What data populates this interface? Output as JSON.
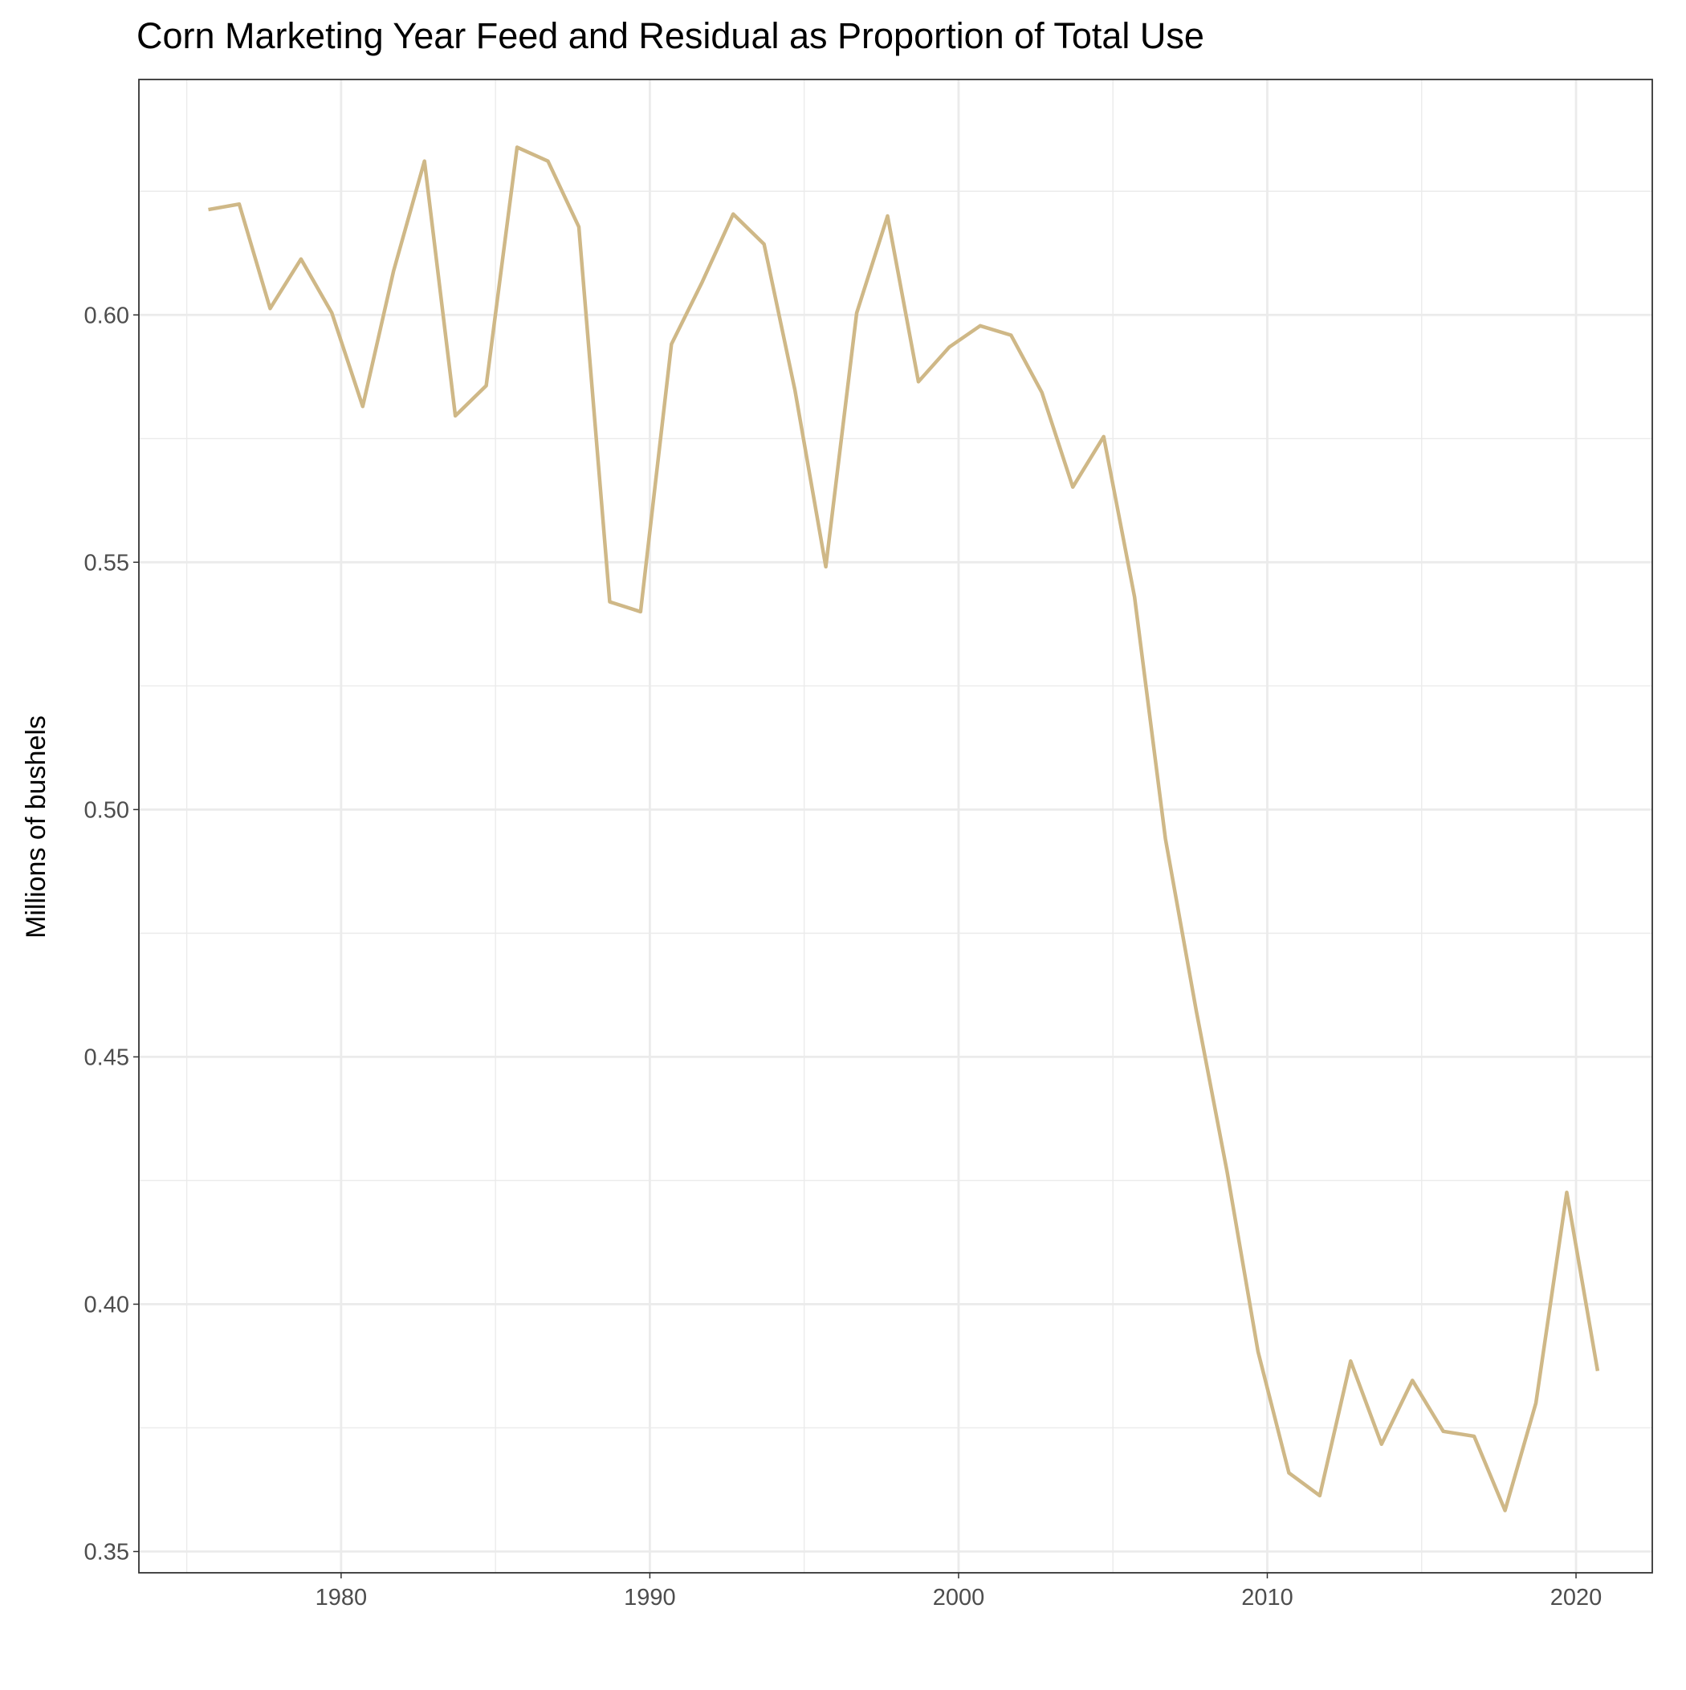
{
  "chart_data": {
    "type": "line",
    "title": "Corn Marketing Year Feed and Residual as Proportion of Total Use",
    "y_label": "Millions of bushels",
    "x": [
      1975.7,
      1976.7,
      1977.7,
      1978.7,
      1979.7,
      1980.7,
      1981.7,
      1982.7,
      1983.7,
      1984.7,
      1985.7,
      1986.7,
      1987.7,
      1988.7,
      1989.7,
      1990.7,
      1991.7,
      1992.7,
      1993.7,
      1994.7,
      1995.7,
      1996.7,
      1997.7,
      1998.7,
      1999.7,
      2000.7,
      2001.7,
      2002.7,
      2003.7,
      2004.7,
      2005.7,
      2006.7,
      2007.7,
      2008.7,
      2009.7,
      2010.7,
      2011.7,
      2012.7,
      2013.7,
      2014.7,
      2015.7,
      2016.7,
      2017.7,
      2018.7,
      2019.7,
      2020.7
    ],
    "series": [
      {
        "color": "#cfb887",
        "values": [
          0.6213,
          0.6224,
          0.6013,
          0.6113,
          0.6004,
          0.5815,
          0.6089,
          0.6311,
          0.5796,
          0.5857,
          0.6339,
          0.6311,
          0.6178,
          0.542,
          0.54,
          0.5941,
          0.6067,
          0.6204,
          0.6143,
          0.5848,
          0.5491,
          0.6004,
          0.62,
          0.5865,
          0.5935,
          0.5978,
          0.5959,
          0.5843,
          0.5652,
          0.5754,
          0.543,
          0.4941,
          0.4593,
          0.4267,
          0.3904,
          0.3659,
          0.3613,
          0.3885,
          0.3717,
          0.3846,
          0.3743,
          0.3733,
          0.3583,
          0.38,
          0.4226,
          0.3865
        ]
      }
    ],
    "xlim": [
      1973.45,
      2022.47
    ],
    "xticks": [
      1980,
      1990,
      2000,
      2010,
      2020
    ],
    "ylim": [
      0.3457,
      0.6476
    ],
    "yticks": [
      {
        "value": 0.35,
        "label": "0.35"
      },
      {
        "value": 0.4,
        "label": "0.40"
      },
      {
        "value": 0.45,
        "label": "0.45"
      },
      {
        "value": 0.5,
        "label": "0.50"
      },
      {
        "value": 0.55,
        "label": "0.55"
      },
      {
        "value": 0.6,
        "label": "0.60"
      }
    ],
    "grid": true
  }
}
